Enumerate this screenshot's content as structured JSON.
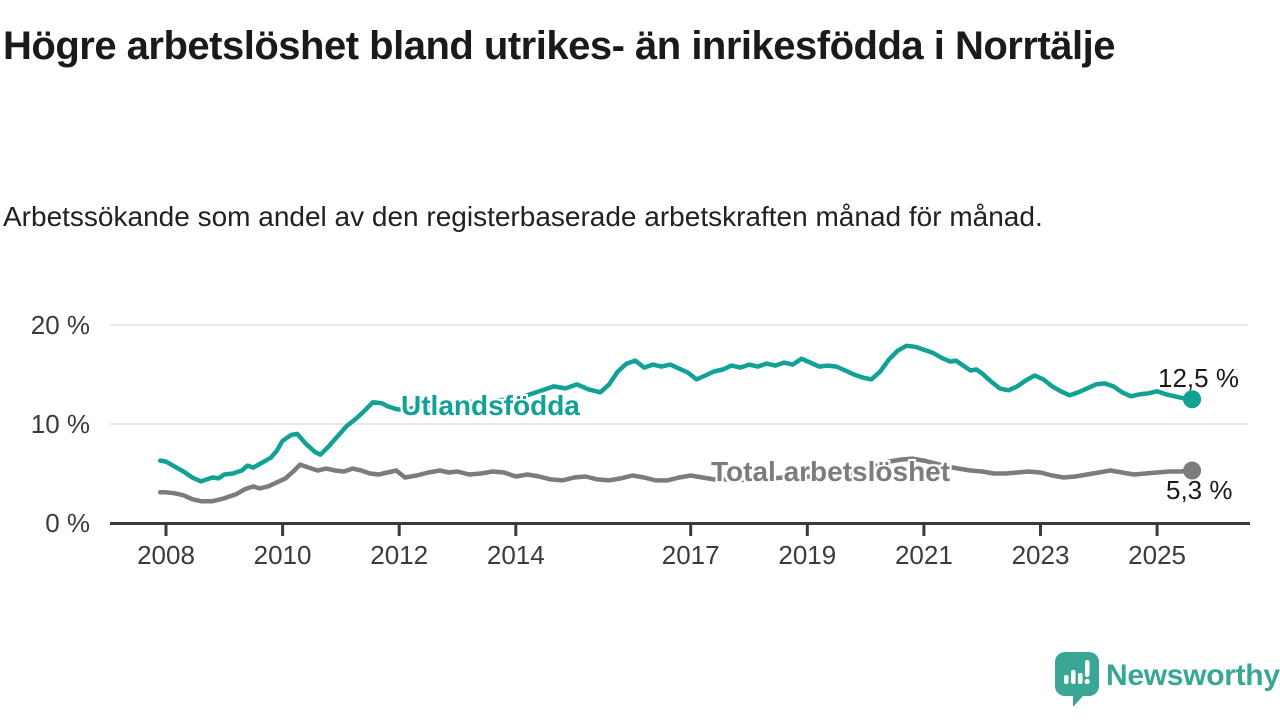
{
  "title": "Högre arbetslöshet bland utrikes- än inrikesfödda i Norrtälje",
  "subtitle": "Arbetssökande som andel av den registerbaserade arbetskraften månad för månad.",
  "branding": {
    "name": "Newsworthy",
    "color": "#3aa796",
    "icon": "bar-chart-speech-bubble"
  },
  "chart_data": {
    "type": "line",
    "title": "Högre arbetslöshet bland utrikes- än inrikesfödda i Norrtälje",
    "subtitle": "Arbetssökande som andel av den registerbaserade arbetskraften månad för månad.",
    "xlabel": "",
    "ylabel": "",
    "xlim": [
      2007.85,
      2026.3
    ],
    "ylim": [
      0,
      21.5
    ],
    "grid": "horizontal",
    "grid_color": "#e1e1e1",
    "axis_color": "#3b3b3b",
    "tick_text_color": "#3b3b3b",
    "legend_position": "inline-labels-on-lines",
    "y_ticks": [
      {
        "value": 0,
        "label": "0 %"
      },
      {
        "value": 10,
        "label": "10 %"
      },
      {
        "value": 20,
        "label": "20 %"
      }
    ],
    "x_ticks": [
      {
        "year": 2008,
        "label": "2008"
      },
      {
        "year": 2010,
        "label": "2010"
      },
      {
        "year": 2012,
        "label": "2012"
      },
      {
        "year": 2014,
        "label": "2014"
      },
      {
        "year": 2017,
        "label": "2017"
      },
      {
        "year": 2019,
        "label": "2019"
      },
      {
        "year": 2021,
        "label": "2021"
      },
      {
        "year": 2023,
        "label": "2023"
      },
      {
        "year": 2025,
        "label": "2025"
      }
    ],
    "series": [
      {
        "name": "Utlandsfödda",
        "color": "#12a295",
        "end_value": 12.5,
        "end_label": "12,5 %",
        "points": [
          [
            2007.9,
            6.3
          ],
          [
            2008.0,
            6.2
          ],
          [
            2008.15,
            5.7
          ],
          [
            2008.3,
            5.2
          ],
          [
            2008.45,
            4.6
          ],
          [
            2008.6,
            4.2
          ],
          [
            2008.7,
            4.4
          ],
          [
            2008.8,
            4.6
          ],
          [
            2008.9,
            4.5
          ],
          [
            2009.0,
            4.9
          ],
          [
            2009.15,
            5.0
          ],
          [
            2009.3,
            5.3
          ],
          [
            2009.4,
            5.8
          ],
          [
            2009.5,
            5.6
          ],
          [
            2009.65,
            6.1
          ],
          [
            2009.8,
            6.6
          ],
          [
            2009.9,
            7.3
          ],
          [
            2010.0,
            8.3
          ],
          [
            2010.15,
            8.9
          ],
          [
            2010.25,
            9.0
          ],
          [
            2010.4,
            8.0
          ],
          [
            2010.55,
            7.2
          ],
          [
            2010.65,
            6.9
          ],
          [
            2010.8,
            7.8
          ],
          [
            2010.95,
            8.8
          ],
          [
            2011.1,
            9.8
          ],
          [
            2011.25,
            10.5
          ],
          [
            2011.4,
            11.3
          ],
          [
            2011.55,
            12.2
          ],
          [
            2011.7,
            12.1
          ],
          [
            2011.8,
            11.8
          ],
          [
            2011.95,
            11.5
          ],
          [
            2012.1,
            11.4
          ],
          [
            2012.3,
            11.7
          ],
          [
            2012.5,
            11.9
          ],
          [
            2012.7,
            11.8
          ],
          [
            2012.9,
            12.0
          ],
          [
            2013.1,
            12.1
          ],
          [
            2013.3,
            12.3
          ],
          [
            2013.5,
            12.2
          ],
          [
            2013.7,
            12.4
          ],
          [
            2013.9,
            12.5
          ],
          [
            2014.1,
            12.7
          ],
          [
            2014.3,
            13.1
          ],
          [
            2014.5,
            13.5
          ],
          [
            2014.65,
            13.8
          ],
          [
            2014.85,
            13.6
          ],
          [
            2015.05,
            14.0
          ],
          [
            2015.25,
            13.5
          ],
          [
            2015.45,
            13.2
          ],
          [
            2015.6,
            14.0
          ],
          [
            2015.75,
            15.3
          ],
          [
            2015.9,
            16.1
          ],
          [
            2016.05,
            16.4
          ],
          [
            2016.2,
            15.7
          ],
          [
            2016.35,
            16.0
          ],
          [
            2016.5,
            15.8
          ],
          [
            2016.65,
            16.0
          ],
          [
            2016.8,
            15.6
          ],
          [
            2016.95,
            15.2
          ],
          [
            2017.1,
            14.5
          ],
          [
            2017.25,
            14.9
          ],
          [
            2017.4,
            15.3
          ],
          [
            2017.55,
            15.5
          ],
          [
            2017.7,
            15.9
          ],
          [
            2017.85,
            15.7
          ],
          [
            2018.0,
            16.0
          ],
          [
            2018.15,
            15.8
          ],
          [
            2018.3,
            16.1
          ],
          [
            2018.45,
            15.9
          ],
          [
            2018.6,
            16.2
          ],
          [
            2018.75,
            16.0
          ],
          [
            2018.9,
            16.6
          ],
          [
            2019.05,
            16.2
          ],
          [
            2019.2,
            15.8
          ],
          [
            2019.35,
            15.9
          ],
          [
            2019.5,
            15.8
          ],
          [
            2019.65,
            15.4
          ],
          [
            2019.8,
            15.0
          ],
          [
            2019.95,
            14.7
          ],
          [
            2020.1,
            14.5
          ],
          [
            2020.25,
            15.3
          ],
          [
            2020.4,
            16.5
          ],
          [
            2020.55,
            17.4
          ],
          [
            2020.7,
            17.9
          ],
          [
            2020.85,
            17.8
          ],
          [
            2021.0,
            17.5
          ],
          [
            2021.15,
            17.2
          ],
          [
            2021.3,
            16.7
          ],
          [
            2021.45,
            16.3
          ],
          [
            2021.55,
            16.4
          ],
          [
            2021.7,
            15.8
          ],
          [
            2021.8,
            15.4
          ],
          [
            2021.9,
            15.5
          ],
          [
            2022.0,
            15.1
          ],
          [
            2022.15,
            14.3
          ],
          [
            2022.3,
            13.6
          ],
          [
            2022.45,
            13.4
          ],
          [
            2022.6,
            13.8
          ],
          [
            2022.75,
            14.4
          ],
          [
            2022.9,
            14.9
          ],
          [
            2023.05,
            14.5
          ],
          [
            2023.2,
            13.8
          ],
          [
            2023.35,
            13.3
          ],
          [
            2023.5,
            12.9
          ],
          [
            2023.65,
            13.2
          ],
          [
            2023.8,
            13.6
          ],
          [
            2023.95,
            14.0
          ],
          [
            2024.1,
            14.1
          ],
          [
            2024.25,
            13.8
          ],
          [
            2024.4,
            13.2
          ],
          [
            2024.55,
            12.8
          ],
          [
            2024.7,
            13.0
          ],
          [
            2024.85,
            13.1
          ],
          [
            2025.0,
            13.3
          ],
          [
            2025.15,
            13.0
          ],
          [
            2025.3,
            12.8
          ],
          [
            2025.45,
            12.6
          ],
          [
            2025.6,
            12.5
          ]
        ]
      },
      {
        "name": "Total arbetslöshet",
        "color": "#7c7c7c",
        "end_value": 5.3,
        "end_label": "5,3 %",
        "points": [
          [
            2007.9,
            3.1
          ],
          [
            2008.0,
            3.1
          ],
          [
            2008.15,
            3.0
          ],
          [
            2008.3,
            2.8
          ],
          [
            2008.45,
            2.4
          ],
          [
            2008.6,
            2.2
          ],
          [
            2008.8,
            2.2
          ],
          [
            2009.0,
            2.5
          ],
          [
            2009.2,
            2.9
          ],
          [
            2009.35,
            3.4
          ],
          [
            2009.5,
            3.7
          ],
          [
            2009.6,
            3.5
          ],
          [
            2009.75,
            3.7
          ],
          [
            2009.9,
            4.1
          ],
          [
            2010.05,
            4.5
          ],
          [
            2010.2,
            5.3
          ],
          [
            2010.3,
            5.9
          ],
          [
            2010.45,
            5.6
          ],
          [
            2010.6,
            5.3
          ],
          [
            2010.75,
            5.5
          ],
          [
            2010.9,
            5.3
          ],
          [
            2011.05,
            5.2
          ],
          [
            2011.2,
            5.5
          ],
          [
            2011.35,
            5.3
          ],
          [
            2011.5,
            5.0
          ],
          [
            2011.65,
            4.9
          ],
          [
            2011.8,
            5.1
          ],
          [
            2011.95,
            5.3
          ],
          [
            2012.1,
            4.6
          ],
          [
            2012.3,
            4.8
          ],
          [
            2012.5,
            5.1
          ],
          [
            2012.7,
            5.3
          ],
          [
            2012.85,
            5.1
          ],
          [
            2013.0,
            5.2
          ],
          [
            2013.2,
            4.9
          ],
          [
            2013.4,
            5.0
          ],
          [
            2013.6,
            5.2
          ],
          [
            2013.8,
            5.1
          ],
          [
            2014.0,
            4.7
          ],
          [
            2014.2,
            4.9
          ],
          [
            2014.4,
            4.7
          ],
          [
            2014.6,
            4.4
          ],
          [
            2014.8,
            4.3
          ],
          [
            2015.0,
            4.6
          ],
          [
            2015.2,
            4.7
          ],
          [
            2015.4,
            4.4
          ],
          [
            2015.6,
            4.3
          ],
          [
            2015.8,
            4.5
          ],
          [
            2016.0,
            4.8
          ],
          [
            2016.2,
            4.6
          ],
          [
            2016.4,
            4.3
          ],
          [
            2016.6,
            4.3
          ],
          [
            2016.8,
            4.6
          ],
          [
            2017.0,
            4.8
          ],
          [
            2017.2,
            4.6
          ],
          [
            2017.4,
            4.4
          ],
          [
            2017.6,
            4.4
          ],
          [
            2017.8,
            4.3
          ],
          [
            2018.0,
            4.4
          ],
          [
            2018.2,
            4.3
          ],
          [
            2018.4,
            4.5
          ],
          [
            2018.6,
            4.6
          ],
          [
            2018.8,
            4.6
          ],
          [
            2019.0,
            4.7
          ],
          [
            2019.2,
            4.6
          ],
          [
            2019.4,
            4.7
          ],
          [
            2019.6,
            4.8
          ],
          [
            2019.8,
            4.9
          ],
          [
            2020.0,
            5.1
          ],
          [
            2020.2,
            5.8
          ],
          [
            2020.4,
            6.2
          ],
          [
            2020.6,
            6.4
          ],
          [
            2020.8,
            6.5
          ],
          [
            2021.0,
            6.3
          ],
          [
            2021.2,
            6.0
          ],
          [
            2021.4,
            5.7
          ],
          [
            2021.6,
            5.5
          ],
          [
            2021.8,
            5.3
          ],
          [
            2022.0,
            5.2
          ],
          [
            2022.2,
            5.0
          ],
          [
            2022.4,
            5.0
          ],
          [
            2022.6,
            5.1
          ],
          [
            2022.8,
            5.2
          ],
          [
            2023.0,
            5.1
          ],
          [
            2023.2,
            4.8
          ],
          [
            2023.4,
            4.6
          ],
          [
            2023.6,
            4.7
          ],
          [
            2023.8,
            4.9
          ],
          [
            2024.0,
            5.1
          ],
          [
            2024.2,
            5.3
          ],
          [
            2024.4,
            5.1
          ],
          [
            2024.6,
            4.9
          ],
          [
            2024.8,
            5.0
          ],
          [
            2025.0,
            5.1
          ],
          [
            2025.2,
            5.2
          ],
          [
            2025.4,
            5.2
          ],
          [
            2025.6,
            5.3
          ]
        ]
      }
    ]
  }
}
